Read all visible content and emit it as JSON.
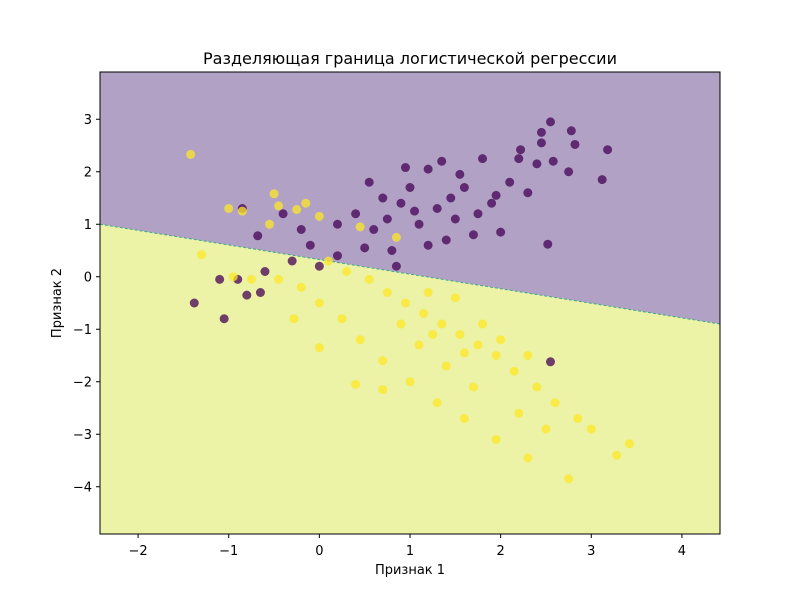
{
  "chart_data": {
    "type": "scatter",
    "title": "Разделяющая граница логистической регрессии",
    "xlabel": "Признак 1",
    "ylabel": "Признак 2",
    "xlim": [
      -2.42,
      4.42
    ],
    "ylim": [
      -4.9,
      3.9
    ],
    "xticks": [
      -2,
      -1,
      0,
      1,
      2,
      3,
      4
    ],
    "yticks": [
      -4,
      -3,
      -2,
      -1,
      0,
      1,
      2,
      3
    ],
    "xtick_labels": [
      "−2",
      "−1",
      "0",
      "1",
      "2",
      "3",
      "4"
    ],
    "ytick_labels": [
      "−4",
      "−3",
      "−2",
      "−1",
      "0",
      "1",
      "2",
      "3"
    ],
    "grid": false,
    "legend": "none",
    "decision_boundary": {
      "x": [
        -2.42,
        4.42
      ],
      "y": [
        1.0,
        -0.9
      ]
    },
    "regions": {
      "upper_color": "#b1a2c5",
      "lower_color": "#ecf2a6",
      "boundary_color": "#3fa88a"
    },
    "series": [
      {
        "color": "#440154",
        "points": [
          [
            2.55,
            2.95
          ],
          [
            2.45,
            2.75
          ],
          [
            2.78,
            2.78
          ],
          [
            2.82,
            2.52
          ],
          [
            3.18,
            2.42
          ],
          [
            2.45,
            2.55
          ],
          [
            2.22,
            2.42
          ],
          [
            2.2,
            2.25
          ],
          [
            2.4,
            2.15
          ],
          [
            2.58,
            2.2
          ],
          [
            2.75,
            2.0
          ],
          [
            3.12,
            1.85
          ],
          [
            2.52,
            0.62
          ],
          [
            1.35,
            2.2
          ],
          [
            1.8,
            2.25
          ],
          [
            1.2,
            2.05
          ],
          [
            0.55,
            1.8
          ],
          [
            -0.85,
            1.3
          ],
          [
            -0.68,
            0.78
          ],
          [
            -0.4,
            1.2
          ],
          [
            -0.2,
            0.9
          ],
          [
            0.8,
            0.5
          ],
          [
            0.9,
            1.4
          ],
          [
            1.1,
            1.0
          ],
          [
            1.3,
            1.3
          ],
          [
            1.5,
            1.1
          ],
          [
            1.6,
            1.7
          ],
          [
            1.9,
            1.4
          ],
          [
            2.1,
            1.8
          ],
          [
            0.4,
            1.2
          ],
          [
            0.6,
            0.9
          ],
          [
            0.7,
            1.5
          ],
          [
            1.0,
            1.7
          ],
          [
            1.2,
            0.6
          ],
          [
            1.4,
            0.7
          ],
          [
            1.7,
            0.8
          ],
          [
            2.0,
            0.85
          ],
          [
            0.2,
            0.4
          ],
          [
            0.0,
            0.2
          ],
          [
            -0.1,
            0.6
          ],
          [
            -0.3,
            0.3
          ],
          [
            -0.6,
            0.1
          ],
          [
            -0.9,
            -0.05
          ],
          [
            -1.1,
            -0.05
          ],
          [
            -0.8,
            -0.35
          ],
          [
            -0.65,
            -0.3
          ],
          [
            -1.38,
            -0.5
          ],
          [
            -1.05,
            -0.8
          ],
          [
            2.55,
            -1.62
          ],
          [
            1.95,
            1.55
          ],
          [
            0.95,
            2.08
          ],
          [
            1.55,
            1.95
          ],
          [
            0.2,
            1.0
          ],
          [
            0.85,
            0.2
          ],
          [
            0.5,
            0.55
          ],
          [
            1.75,
            1.2
          ],
          [
            2.3,
            1.6
          ],
          [
            1.05,
            1.25
          ],
          [
            0.75,
            1.1
          ],
          [
            1.45,
            1.5
          ]
        ]
      },
      {
        "color": "#fde725",
        "points": [
          [
            -1.42,
            2.33
          ],
          [
            -1.3,
            0.42
          ],
          [
            -1.0,
            1.3
          ],
          [
            -0.5,
            1.58
          ],
          [
            -0.45,
            1.35
          ],
          [
            -0.25,
            1.28
          ],
          [
            -0.15,
            1.4
          ],
          [
            -0.85,
            1.25
          ],
          [
            -0.55,
            1.0
          ],
          [
            0.0,
            1.15
          ],
          [
            0.45,
            0.95
          ],
          [
            0.85,
            0.75
          ],
          [
            0.1,
            0.3
          ],
          [
            0.3,
            0.1
          ],
          [
            0.55,
            -0.05
          ],
          [
            0.75,
            -0.3
          ],
          [
            0.95,
            -0.5
          ],
          [
            1.15,
            -0.7
          ],
          [
            1.35,
            -0.9
          ],
          [
            1.55,
            -1.1
          ],
          [
            1.75,
            -1.3
          ],
          [
            1.95,
            -1.5
          ],
          [
            2.15,
            -1.8
          ],
          [
            2.4,
            -2.1
          ],
          [
            2.6,
            -2.4
          ],
          [
            2.85,
            -2.7
          ],
          [
            3.0,
            -2.9
          ],
          [
            3.28,
            -3.4
          ],
          [
            3.42,
            -3.18
          ],
          [
            2.75,
            -3.85
          ],
          [
            2.3,
            -3.45
          ],
          [
            1.95,
            -3.1
          ],
          [
            1.6,
            -2.7
          ],
          [
            1.3,
            -2.4
          ],
          [
            1.0,
            -2.0
          ],
          [
            0.7,
            -1.6
          ],
          [
            0.45,
            -1.2
          ],
          [
            0.25,
            -0.8
          ],
          [
            0.0,
            -0.5
          ],
          [
            -0.2,
            -0.2
          ],
          [
            -0.45,
            -0.05
          ],
          [
            -0.75,
            -0.05
          ],
          [
            -0.95,
            0.0
          ],
          [
            0.4,
            -2.05
          ],
          [
            0.7,
            -2.15
          ],
          [
            -0.28,
            -0.8
          ],
          [
            0.0,
            -1.35
          ],
          [
            1.2,
            -0.3
          ],
          [
            1.5,
            -0.4
          ],
          [
            1.8,
            -0.9
          ],
          [
            2.0,
            -1.2
          ],
          [
            2.3,
            -1.5
          ],
          [
            1.1,
            -1.3
          ],
          [
            1.4,
            -1.7
          ],
          [
            1.7,
            -2.1
          ],
          [
            2.5,
            -2.9
          ],
          [
            2.2,
            -2.6
          ],
          [
            0.9,
            -0.9
          ],
          [
            1.25,
            -1.1
          ],
          [
            1.6,
            -1.45
          ]
        ]
      }
    ]
  }
}
